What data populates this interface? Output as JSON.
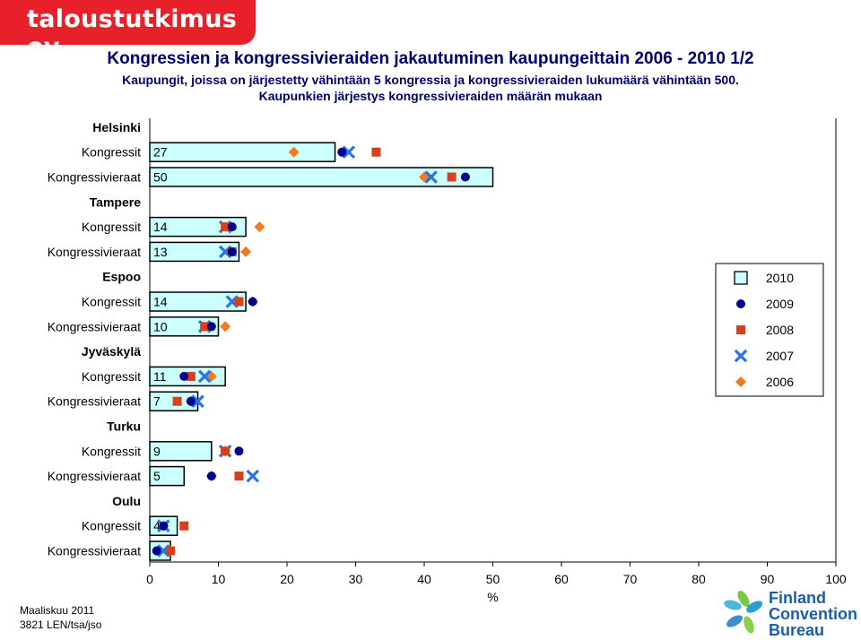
{
  "brand": "taloustutkimus oy",
  "header": {
    "title": "Kongressien ja kongressivieraiden jakautuminen kaupungeittain 2006 - 2010 1/2",
    "subtitle1": "Kaupungit, joissa on järjestetty vähintään 5 kongressia ja kongressivieraiden lukumäärä vähintään 500.",
    "subtitle2": "Kaupunkien järjestys kongressivieraiden määrän mukaan"
  },
  "footer": {
    "line1": "Maaliskuu 2011",
    "line2": "3821 LEN/tsa/jso"
  },
  "logo": {
    "line1": "Finland",
    "line2": "Convention",
    "line3": "Bureau"
  },
  "colors": {
    "brand": "#e8202a",
    "bar_fill": "#ccffff",
    "2009": "#00008b",
    "2008": "#d6401a",
    "2007": "#2a72e8",
    "2006": "#f07c1e"
  },
  "chart_data": {
    "type": "bar",
    "orientation": "horizontal",
    "xlabel": "%",
    "xlim": [
      0,
      100
    ],
    "xticks": [
      0,
      10,
      20,
      30,
      40,
      50,
      60,
      70,
      80,
      90,
      100
    ],
    "grid": false,
    "legend_position": "right",
    "legend": [
      {
        "name": "2010",
        "marker": "bar",
        "color": "#ccffff"
      },
      {
        "name": "2009",
        "marker": "circle",
        "color": "#00008b"
      },
      {
        "name": "2008",
        "marker": "square",
        "color": "#d6401a"
      },
      {
        "name": "2007",
        "marker": "cross",
        "color": "#2a72e8"
      },
      {
        "name": "2006",
        "marker": "diamond",
        "color": "#f07c1e"
      }
    ],
    "groups": [
      {
        "city": "Helsinki",
        "rows": [
          {
            "label": "Kongressit",
            "value_label": "27",
            "v2010": 27,
            "v2009": 28,
            "v2008": 33,
            "v2007": 29,
            "v2006": 21
          },
          {
            "label": "Kongressivieraat",
            "value_label": "50",
            "v2010": 50,
            "v2009": 46,
            "v2008": 44,
            "v2007": 41,
            "v2006": 40
          }
        ]
      },
      {
        "city": "Tampere",
        "rows": [
          {
            "label": "Kongressit",
            "value_label": "14",
            "v2010": 14,
            "v2009": 12,
            "v2008": 11,
            "v2007": 11,
            "v2006": 16
          },
          {
            "label": "Kongressivieraat",
            "value_label": "13",
            "v2010": 13,
            "v2009": 12,
            "v2008": 12,
            "v2007": 11,
            "v2006": 14
          }
        ]
      },
      {
        "city": "Espoo",
        "rows": [
          {
            "label": "Kongressit",
            "value_label": "14",
            "v2010": 14,
            "v2009": 15,
            "v2008": 13,
            "v2007": 12,
            "v2006": 15
          },
          {
            "label": "Kongressivieraat",
            "value_label": "10",
            "v2010": 10,
            "v2009": 9,
            "v2008": 8,
            "v2007": 8,
            "v2006": 11
          }
        ]
      },
      {
        "city": "Jyväskylä",
        "rows": [
          {
            "label": "Kongressit",
            "value_label": "11",
            "v2010": 11,
            "v2009": 5,
            "v2008": 6,
            "v2007": 8,
            "v2006": 9
          },
          {
            "label": "Kongressivieraat",
            "value_label": "7",
            "v2010": 7,
            "v2009": 6,
            "v2008": 4,
            "v2007": 7,
            "v2006": 6
          }
        ]
      },
      {
        "city": "Turku",
        "rows": [
          {
            "label": "Kongressit",
            "value_label": "9",
            "v2010": 9,
            "v2009": 13,
            "v2008": 11,
            "v2007": 11,
            "v2006": 11
          },
          {
            "label": "Kongressivieraat",
            "value_label": "5",
            "v2010": 5,
            "v2009": 9,
            "v2008": 13,
            "v2007": 15,
            "v2006": 9
          }
        ]
      },
      {
        "city": "Oulu",
        "rows": [
          {
            "label": "Kongressit",
            "value_label": "4",
            "v2010": 4,
            "v2009": 2,
            "v2008": 5,
            "v2007": 2,
            "v2006": 2
          },
          {
            "label": "Kongressivieraat",
            "value_label": "3",
            "v2010": 3,
            "v2009": 1,
            "v2008": 3,
            "v2007": 2,
            "v2006": 3
          }
        ]
      }
    ]
  }
}
